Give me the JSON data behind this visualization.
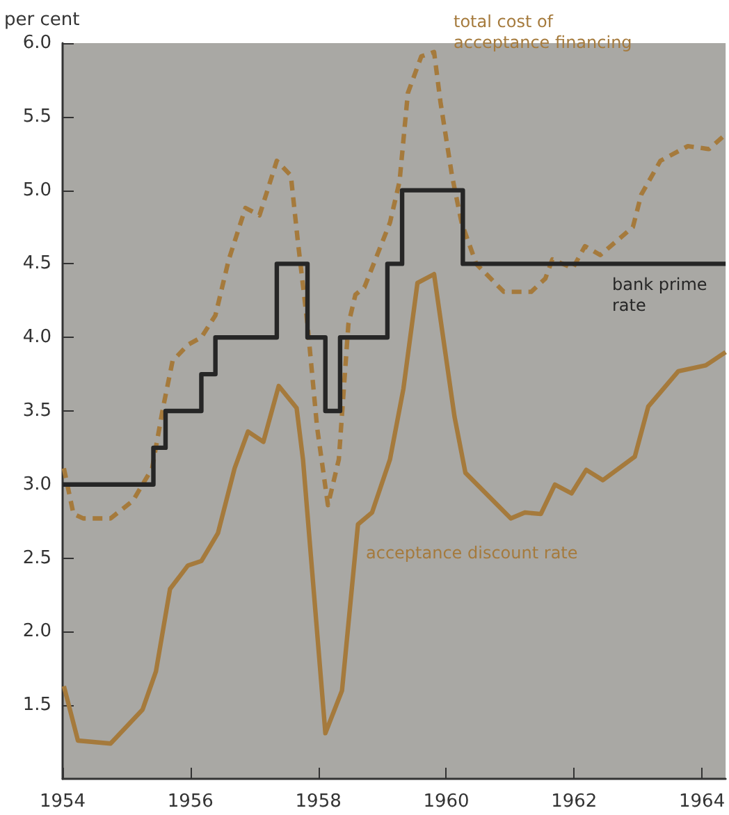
{
  "chart_data": {
    "type": "line",
    "ylabel": "per cent",
    "xlim": [
      1954,
      1964.37
    ],
    "xticks": [
      1954,
      1956,
      1958,
      1960,
      1962,
      1964
    ],
    "ylim": [
      1.0,
      6.0
    ],
    "yticks": [
      {
        "value": 1.5,
        "label": "1.5"
      },
      {
        "value": 2,
        "label": "2.0"
      },
      {
        "value": 2.5,
        "label": "2.5"
      },
      {
        "value": 3,
        "label": "3.0"
      },
      {
        "value": 3.5,
        "label": "3.5"
      },
      {
        "value": 4,
        "label": "4.0"
      },
      {
        "value": 4.5,
        "label": "4.5"
      },
      {
        "value": 5,
        "label": "5.0"
      },
      {
        "value": 5.5,
        "label": "5.5"
      },
      {
        "value": 6,
        "label": "6.0"
      }
    ],
    "grid": false,
    "legend": false,
    "marker": "none",
    "series": [
      {
        "name": "total cost of acceptance financing",
        "type": "line",
        "line_style": "dashed",
        "color": "#a57a3c",
        "x": [
          1954.02,
          1954.17,
          1954.32,
          1954.75,
          1955.1,
          1955.4,
          1955.57,
          1955.72,
          1955.96,
          1956.17,
          1956.39,
          1956.6,
          1956.86,
          1957.08,
          1957.35,
          1957.57,
          1957.68,
          1957.83,
          1957.98,
          1958.15,
          1958.32,
          1958.47,
          1958.58,
          1958.72,
          1959.12,
          1959.27,
          1959.4,
          1959.61,
          1959.81,
          1959.91,
          1960.09,
          1960.24,
          1960.47,
          1960.9,
          1961.33,
          1961.55,
          1961.66,
          1961.98,
          1962.17,
          1962.41,
          1962.92,
          1963.05,
          1963.35,
          1963.78,
          1964.11,
          1964.37
        ],
        "values": [
          3.11,
          2.8,
          2.77,
          2.77,
          2.89,
          3.11,
          3.52,
          3.84,
          3.95,
          4.0,
          4.15,
          4.53,
          4.88,
          4.83,
          5.2,
          5.1,
          4.65,
          4.09,
          3.39,
          2.86,
          3.17,
          4.09,
          4.29,
          4.34,
          4.78,
          5.06,
          5.66,
          5.91,
          5.94,
          5.6,
          5.1,
          4.78,
          4.5,
          4.31,
          4.31,
          4.4,
          4.53,
          4.47,
          4.62,
          4.56,
          4.75,
          4.97,
          5.2,
          5.3,
          5.28,
          5.38
        ]
      },
      {
        "name": "bank prime rate",
        "type": "step",
        "line_style": "solid",
        "color": "#262626",
        "x": [
          1954,
          1955.42,
          1955.61,
          1956.17,
          1956.39,
          1957.35,
          1957.83,
          1958.11,
          1958.34,
          1959.08,
          1959.31,
          1960.26,
          1964.37
        ],
        "values": [
          3.0,
          3.25,
          3.5,
          3.75,
          4.0,
          4.5,
          4.0,
          3.5,
          4.0,
          4.5,
          5.0,
          4.5,
          4.5
        ]
      },
      {
        "name": "acceptance discount rate",
        "type": "line",
        "line_style": "solid",
        "color": "#a57a3c",
        "x": [
          1954.02,
          1954.24,
          1954.75,
          1955.25,
          1955.46,
          1955.68,
          1955.96,
          1956.17,
          1956.43,
          1956.69,
          1956.9,
          1957.14,
          1957.38,
          1957.66,
          1957.76,
          1958.11,
          1958.37,
          1958.62,
          1958.84,
          1959.12,
          1959.33,
          1959.55,
          1959.81,
          1960.13,
          1960.3,
          1961.01,
          1961.23,
          1961.48,
          1961.7,
          1961.96,
          1962.19,
          1962.45,
          1962.95,
          1963.16,
          1963.63,
          1964.06,
          1964.37
        ],
        "values": [
          1.63,
          1.26,
          1.24,
          1.47,
          1.73,
          2.29,
          2.45,
          2.48,
          2.67,
          3.11,
          3.36,
          3.29,
          3.67,
          3.52,
          3.17,
          1.31,
          1.6,
          2.73,
          2.81,
          3.17,
          3.65,
          4.37,
          4.43,
          3.46,
          3.08,
          2.77,
          2.81,
          2.8,
          3.0,
          2.94,
          3.1,
          3.03,
          3.19,
          3.53,
          3.77,
          3.81,
          3.9
        ]
      }
    ]
  }
}
